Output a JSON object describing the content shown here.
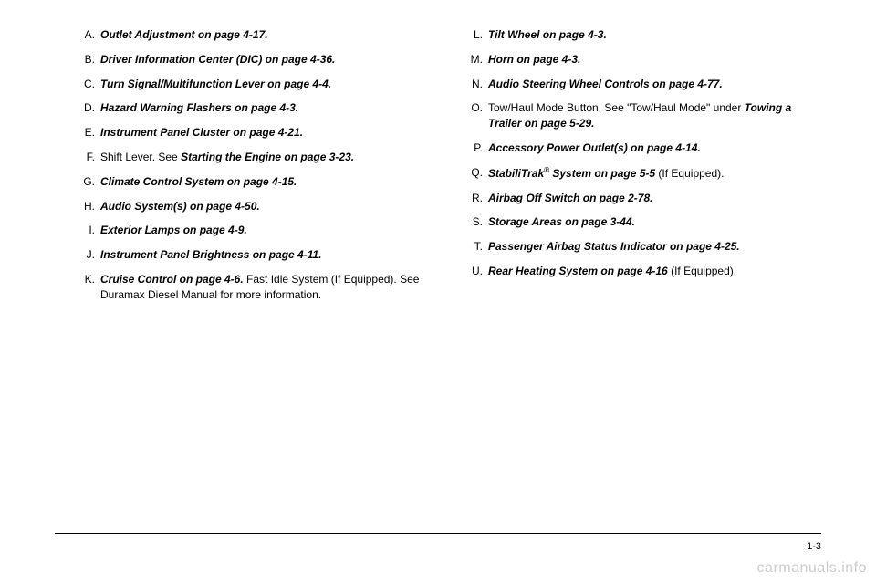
{
  "left_column": [
    {
      "letter": "A.",
      "html": "<span class='italic-bold'>Outlet Adjustment on page 4-17.</span>"
    },
    {
      "letter": "B.",
      "html": "<span class='italic-bold'>Driver Information Center (DIC) on page 4-36.</span>"
    },
    {
      "letter": "C.",
      "html": "<span class='italic-bold'>Turn Signal/Multifunction Lever on page 4-4.</span>"
    },
    {
      "letter": "D.",
      "html": "<span class='italic-bold'>Hazard Warning Flashers on page 4-3.</span>"
    },
    {
      "letter": "E.",
      "html": "<span class='italic-bold'>Instrument Panel Cluster on page 4-21.</span>"
    },
    {
      "letter": "F.",
      "html": "Shift Lever. See <span class='italic-bold'>Starting the Engine on page 3-23.</span>"
    },
    {
      "letter": "G.",
      "html": "<span class='italic-bold'>Climate Control System on page 4-15.</span>"
    },
    {
      "letter": "H.",
      "html": "<span class='italic-bold'>Audio System(s) on page 4-50.</span>"
    },
    {
      "letter": "I.",
      "html": "<span class='italic-bold'>Exterior Lamps on page 4-9.</span>"
    },
    {
      "letter": "J.",
      "html": "<span class='italic-bold'>Instrument Panel Brightness on page 4-11.</span>"
    },
    {
      "letter": "K.",
      "html": "<span class='italic-bold'>Cruise Control on page 4-6.</span> Fast Idle System (If Equipped). See Duramax Diesel Manual for more information."
    }
  ],
  "right_column": [
    {
      "letter": "L.",
      "html": "<span class='italic-bold'>Tilt Wheel on page 4-3.</span>"
    },
    {
      "letter": "M.",
      "html": "<span class='italic-bold'>Horn on page 4-3.</span>"
    },
    {
      "letter": "N.",
      "html": "<span class='italic-bold'>Audio Steering Wheel Controls on page 4-77.</span>"
    },
    {
      "letter": "O.",
      "html": "Tow/Haul Mode Button. See \"Tow/Haul Mode\" under <span class='italic-bold'>Towing a Trailer on page 5-29.</span>"
    },
    {
      "letter": "P.",
      "html": "<span class='italic-bold'>Accessory Power Outlet(s) on page 4-14.</span>"
    },
    {
      "letter": "Q.",
      "html": "<span class='italic-bold'>StabiliTrak<sup>®</sup> System on page 5-5</span> (If Equipped)."
    },
    {
      "letter": "R.",
      "html": "<span class='italic-bold'>Airbag Off Switch on page 2-78.</span>"
    },
    {
      "letter": "S.",
      "html": "<span class='italic-bold'>Storage Areas on page 3-44.</span>"
    },
    {
      "letter": "T.",
      "html": "<span class='italic-bold'>Passenger Airbag Status Indicator on page 4-25.</span>"
    },
    {
      "letter": "U.",
      "html": "<span class='italic-bold'>Rear Heating System on page 4-16</span> (If Equipped)."
    }
  ],
  "page_number": "1-3",
  "watermark": "carmanuals.info"
}
